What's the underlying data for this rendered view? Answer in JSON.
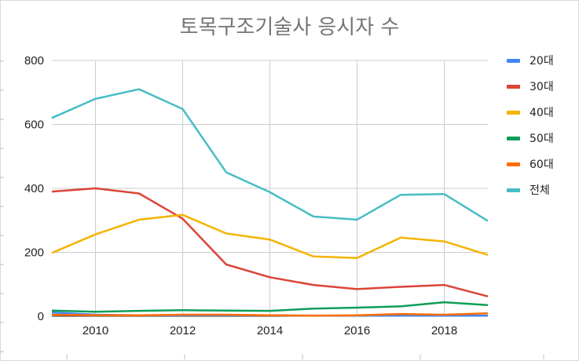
{
  "chart_data": {
    "type": "line",
    "title": "토목구조기술사 응시자 수",
    "xlabel": "",
    "ylabel": "",
    "x": [
      2009,
      2010,
      2011,
      2012,
      2013,
      2014,
      2015,
      2016,
      2017,
      2018,
      2019
    ],
    "xlim": [
      2009,
      2019
    ],
    "ylim": [
      0,
      800
    ],
    "xticks": [
      2010,
      2012,
      2014,
      2016,
      2018
    ],
    "yticks": [
      0,
      200,
      400,
      600,
      800
    ],
    "grid": true,
    "legend_position": "right",
    "series": [
      {
        "name": "20대",
        "color": "#4285f4",
        "values": [
          12,
          5,
          3,
          3,
          3,
          3,
          2,
          2,
          2,
          2,
          2
        ]
      },
      {
        "name": "30대",
        "color": "#db4437",
        "values": [
          390,
          400,
          384,
          305,
          162,
          122,
          98,
          85,
          92,
          98,
          62
        ]
      },
      {
        "name": "40대",
        "color": "#f4b400",
        "values": [
          198,
          256,
          302,
          317,
          259,
          240,
          187,
          182,
          246,
          234,
          192
        ]
      },
      {
        "name": "50대",
        "color": "#0f9d58",
        "values": [
          18,
          14,
          17,
          19,
          18,
          17,
          24,
          27,
          31,
          44,
          35
        ]
      },
      {
        "name": "60대",
        "color": "#ff6d01",
        "values": [
          5,
          3,
          3,
          5,
          5,
          3,
          2,
          3,
          7,
          5,
          9
        ]
      },
      {
        "name": "전체",
        "color": "#46bdc6",
        "values": [
          620,
          680,
          710,
          648,
          450,
          388,
          312,
          302,
          380,
          382,
          298
        ]
      }
    ]
  }
}
